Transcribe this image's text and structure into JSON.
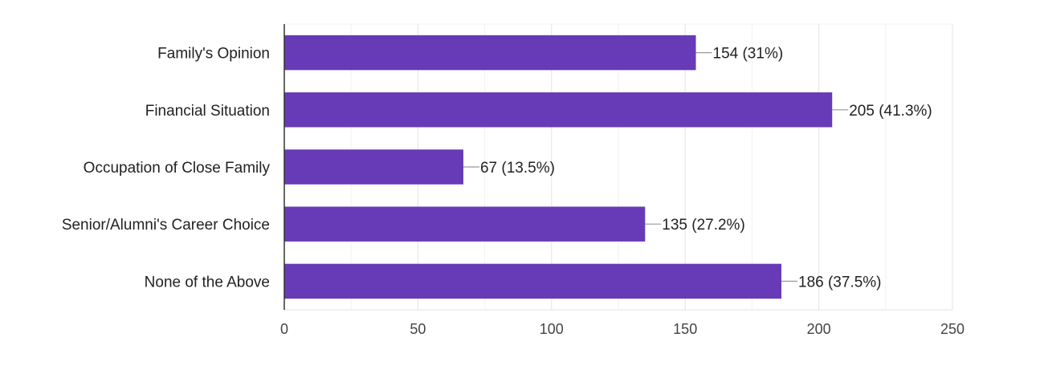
{
  "chart_data": {
    "type": "bar",
    "orientation": "horizontal",
    "categories": [
      "Family's Opinion",
      "Financial Situation",
      "Occupation of Close Family",
      "Senior/Alumni's Career Choice",
      "None of the Above"
    ],
    "values": [
      154,
      205,
      67,
      135,
      186
    ],
    "data_labels": [
      "154 (31%)",
      "205 (41.3%)",
      "67 (13.5%)",
      "135 (27.2%)",
      "186 (37.5%)"
    ],
    "title": "",
    "xlabel": "",
    "ylabel": "",
    "xlim": [
      0,
      250
    ],
    "x_ticks": [
      0,
      50,
      100,
      150,
      200,
      250
    ],
    "grid": true,
    "legend": "none",
    "colors": {
      "bar": "#673ab7",
      "grid_major": "#e3e3e3",
      "grid_minor": "#f2f2f2",
      "axis": "#333333",
      "leader": "#999999"
    }
  }
}
